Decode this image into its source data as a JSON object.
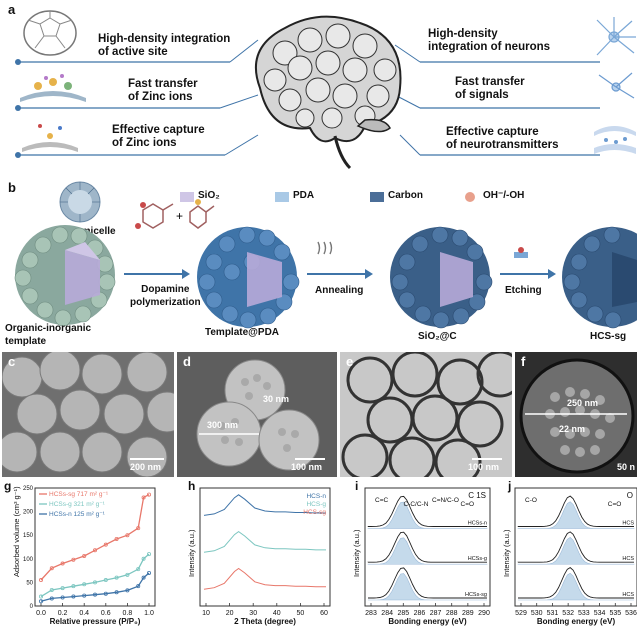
{
  "panel_a": {
    "label": "a",
    "left_items": [
      {
        "text": "High-density integration\nof active site"
      },
      {
        "text": "Fast transfer\nof Zinc ions"
      },
      {
        "text": "Effective capture\nof Zinc ions"
      }
    ],
    "right_items": [
      {
        "text": "High-density\nintegration of neurons"
      },
      {
        "text": "Fast transfer\nof signals"
      },
      {
        "text": "Effective capture\nof neurotransmitters"
      }
    ]
  },
  "panel_b": {
    "label": "b",
    "legend": [
      {
        "name": "SiO₂",
        "color": "#cfc6e6"
      },
      {
        "name": "PDA",
        "color": "#a9c9e6"
      },
      {
        "name": "Carbon",
        "color": "#4b6e98"
      },
      {
        "name": "OH⁻/-OH",
        "color": "#e8a08c"
      }
    ],
    "monomicelle": "Monomicelle",
    "step1": "Dopamine\npolymerization",
    "step2": "Annealing",
    "step3": "Etching",
    "stages": [
      "Organic-inorganic\ntemplate",
      "Template@PDA",
      "SiO₂@C",
      "HCS-sg"
    ]
  },
  "micrographs": [
    {
      "label": "c",
      "scale": "200 nm"
    },
    {
      "label": "d",
      "scale": "100 nm",
      "annot1": "30 nm",
      "annot2": "300 nm"
    },
    {
      "label": "e",
      "scale": "100 nm"
    },
    {
      "label": "f",
      "scale": "50 n",
      "annot1": "250 nm",
      "annot2": "22 nm"
    }
  ],
  "chart_data": [
    {
      "panel": "g",
      "type": "line",
      "xlabel": "Relative pressure (P/P₀)",
      "ylabel": "Adsorbed volume (cm³ g⁻¹)",
      "xticks": [
        "0.0",
        "0.2",
        "0.4",
        "0.6",
        "0.8",
        "1.0"
      ],
      "yticks": [
        "0",
        "50",
        "100",
        "150",
        "200",
        "250"
      ],
      "xlim": [
        0,
        1
      ],
      "ylim": [
        0,
        250
      ],
      "series": [
        {
          "name": "HCSs-sg",
          "value_label": "717 m² g⁻¹",
          "color": "#e8776a",
          "x": [
            0.0,
            0.1,
            0.2,
            0.3,
            0.4,
            0.5,
            0.6,
            0.7,
            0.8,
            0.9,
            0.95,
            1.0
          ],
          "y": [
            55,
            80,
            90,
            98,
            106,
            118,
            130,
            142,
            150,
            165,
            230,
            236
          ]
        },
        {
          "name": "HCSs-g",
          "value_label": "321 m² g⁻¹",
          "color": "#7cc6c0",
          "x": [
            0.0,
            0.1,
            0.2,
            0.3,
            0.4,
            0.5,
            0.6,
            0.7,
            0.8,
            0.9,
            0.95,
            1.0
          ],
          "y": [
            20,
            34,
            38,
            42,
            46,
            50,
            55,
            60,
            66,
            78,
            100,
            110
          ]
        },
        {
          "name": "HCSs-n",
          "value_label": "125 m² g⁻¹",
          "color": "#3f74a8",
          "x": [
            0.0,
            0.1,
            0.2,
            0.3,
            0.4,
            0.5,
            0.6,
            0.7,
            0.8,
            0.9,
            0.95,
            1.0
          ],
          "y": [
            10,
            16,
            18,
            20,
            22,
            24,
            26,
            29,
            33,
            42,
            60,
            70
          ]
        }
      ]
    },
    {
      "panel": "h",
      "type": "line",
      "xlabel": "2 Theta (degree)",
      "ylabel": "Intensity (a.u.)",
      "xticks": [
        "10",
        "20",
        "30",
        "40",
        "50",
        "60"
      ],
      "xlim": [
        5,
        65
      ],
      "series": [
        {
          "name": "HCS-n",
          "color": "#3f74a8",
          "offset": 2,
          "x": [
            5,
            10,
            15,
            20,
            22,
            25,
            30,
            35,
            40,
            45,
            50,
            55,
            60,
            65
          ],
          "y": [
            0.3,
            0.35,
            0.5,
            0.9,
            1.0,
            0.85,
            0.55,
            0.45,
            0.42,
            0.42,
            0.4,
            0.4,
            0.38,
            0.38
          ]
        },
        {
          "name": "HCS-g",
          "color": "#7cc6c0",
          "offset": 1,
          "x": [
            5,
            10,
            15,
            20,
            22,
            25,
            30,
            35,
            40,
            45,
            50,
            55,
            60,
            65
          ],
          "y": [
            0.3,
            0.35,
            0.5,
            0.9,
            1.0,
            0.85,
            0.55,
            0.45,
            0.42,
            0.42,
            0.4,
            0.4,
            0.38,
            0.38
          ]
        },
        {
          "name": "HCS-sg",
          "color": "#e8776a",
          "offset": 0,
          "x": [
            5,
            10,
            15,
            20,
            22,
            25,
            30,
            35,
            40,
            45,
            50,
            55,
            60,
            65
          ],
          "y": [
            0.3,
            0.35,
            0.5,
            0.9,
            1.0,
            0.85,
            0.55,
            0.45,
            0.42,
            0.42,
            0.4,
            0.4,
            0.38,
            0.38
          ]
        }
      ]
    },
    {
      "panel": "i",
      "type": "line",
      "title": "C 1S",
      "xlabel": "Bonding energy (eV)",
      "ylabel": "Intensity (a.u.)",
      "xticks": [
        "283",
        "284",
        "285",
        "286",
        "287",
        "288",
        "289",
        "290"
      ],
      "annotations": [
        "C=C",
        "C-C/C-N",
        "C=N/C-O",
        "C=O"
      ],
      "series": [
        {
          "name": "HCSs-n",
          "offset": 2
        },
        {
          "name": "HCSs-g",
          "offset": 1
        },
        {
          "name": "HCSs-sg",
          "offset": 0
        }
      ]
    },
    {
      "panel": "j",
      "type": "line",
      "title": "O",
      "xlabel": "Bonding energy (eV)",
      "ylabel": "Intensity (a.u.)",
      "xticks": [
        "529",
        "530",
        "531",
        "532",
        "533",
        "534",
        "535",
        "536"
      ],
      "annotations": [
        "C-O",
        "C=O"
      ],
      "series": [
        {
          "name": "HCS",
          "offset": 2
        },
        {
          "name": "HCS",
          "offset": 1
        },
        {
          "name": "HCS",
          "offset": 0
        }
      ]
    }
  ]
}
